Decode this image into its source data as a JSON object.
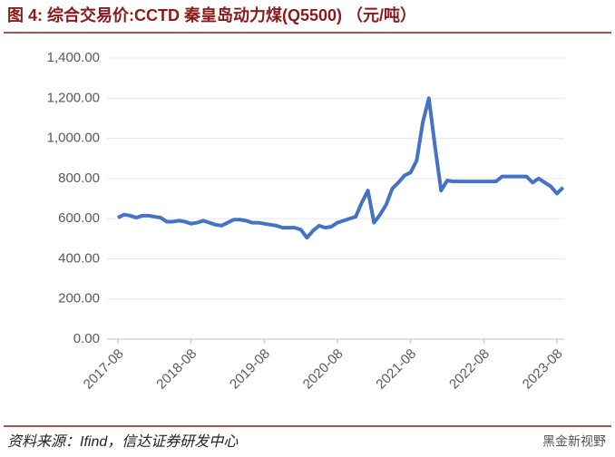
{
  "chart_data": {
    "type": "line",
    "title": "图 4: 综合交易价:CCTD 秦皇岛动力煤(Q5500) （元/吨）",
    "source": "资料来源：Ifind，信达证券研发中心",
    "watermark": "黑金新视野",
    "x": [
      "2017-08",
      "2017-09",
      "2017-10",
      "2017-11",
      "2017-12",
      "2018-01",
      "2018-02",
      "2018-03",
      "2018-04",
      "2018-05",
      "2018-06",
      "2018-07",
      "2018-08",
      "2018-09",
      "2018-10",
      "2018-11",
      "2018-12",
      "2019-01",
      "2019-02",
      "2019-03",
      "2019-04",
      "2019-05",
      "2019-06",
      "2019-07",
      "2019-08",
      "2019-09",
      "2019-10",
      "2019-11",
      "2019-12",
      "2020-01",
      "2020-02",
      "2020-03",
      "2020-04",
      "2020-05",
      "2020-06",
      "2020-07",
      "2020-08",
      "2020-09",
      "2020-10",
      "2020-11",
      "2020-12",
      "2021-01",
      "2021-02",
      "2021-03",
      "2021-04",
      "2021-05",
      "2021-06",
      "2021-07",
      "2021-08",
      "2021-09",
      "2021-10",
      "2021-11",
      "2021-12",
      "2022-01",
      "2022-02",
      "2022-03",
      "2022-04",
      "2022-05",
      "2022-06",
      "2022-07",
      "2022-08",
      "2022-09",
      "2022-10",
      "2022-11",
      "2022-12",
      "2023-01",
      "2023-02",
      "2023-03",
      "2023-04",
      "2023-05",
      "2023-06",
      "2023-07",
      "2023-08",
      "2023-09"
    ],
    "series": [
      {
        "name": "综合交易价:CCTD 秦皇岛动力煤(Q5500)",
        "color": "#4472c4",
        "values": [
          605,
          620,
          615,
          605,
          615,
          615,
          610,
          605,
          585,
          585,
          590,
          585,
          575,
          580,
          590,
          580,
          570,
          565,
          580,
          595,
          595,
          590,
          580,
          580,
          575,
          570,
          565,
          555,
          555,
          555,
          545,
          505,
          540,
          565,
          555,
          560,
          580,
          590,
          600,
          610,
          680,
          740,
          580,
          620,
          670,
          750,
          780,
          815,
          830,
          890,
          1080,
          1200,
          960,
          740,
          790,
          785,
          785,
          785,
          785,
          785,
          785,
          785,
          785,
          810,
          810,
          810,
          810,
          810,
          780,
          800,
          780,
          760,
          725,
          755
        ]
      }
    ],
    "ylim": [
      0,
      1400
    ],
    "yticks": [
      {
        "value": 0,
        "label": "0.00"
      },
      {
        "value": 200,
        "label": "200.00"
      },
      {
        "value": 400,
        "label": "400.00"
      },
      {
        "value": 600,
        "label": "600.00"
      },
      {
        "value": 800,
        "label": "800.00"
      },
      {
        "value": 1000,
        "label": "1,000.00"
      },
      {
        "value": 1200,
        "label": "1,200.00"
      },
      {
        "value": 1400,
        "label": "1,400.00"
      }
    ],
    "xticks": [
      "2017-08",
      "2018-08",
      "2019-08",
      "2020-08",
      "2021-08",
      "2022-08",
      "2023-08"
    ],
    "grid": true
  }
}
